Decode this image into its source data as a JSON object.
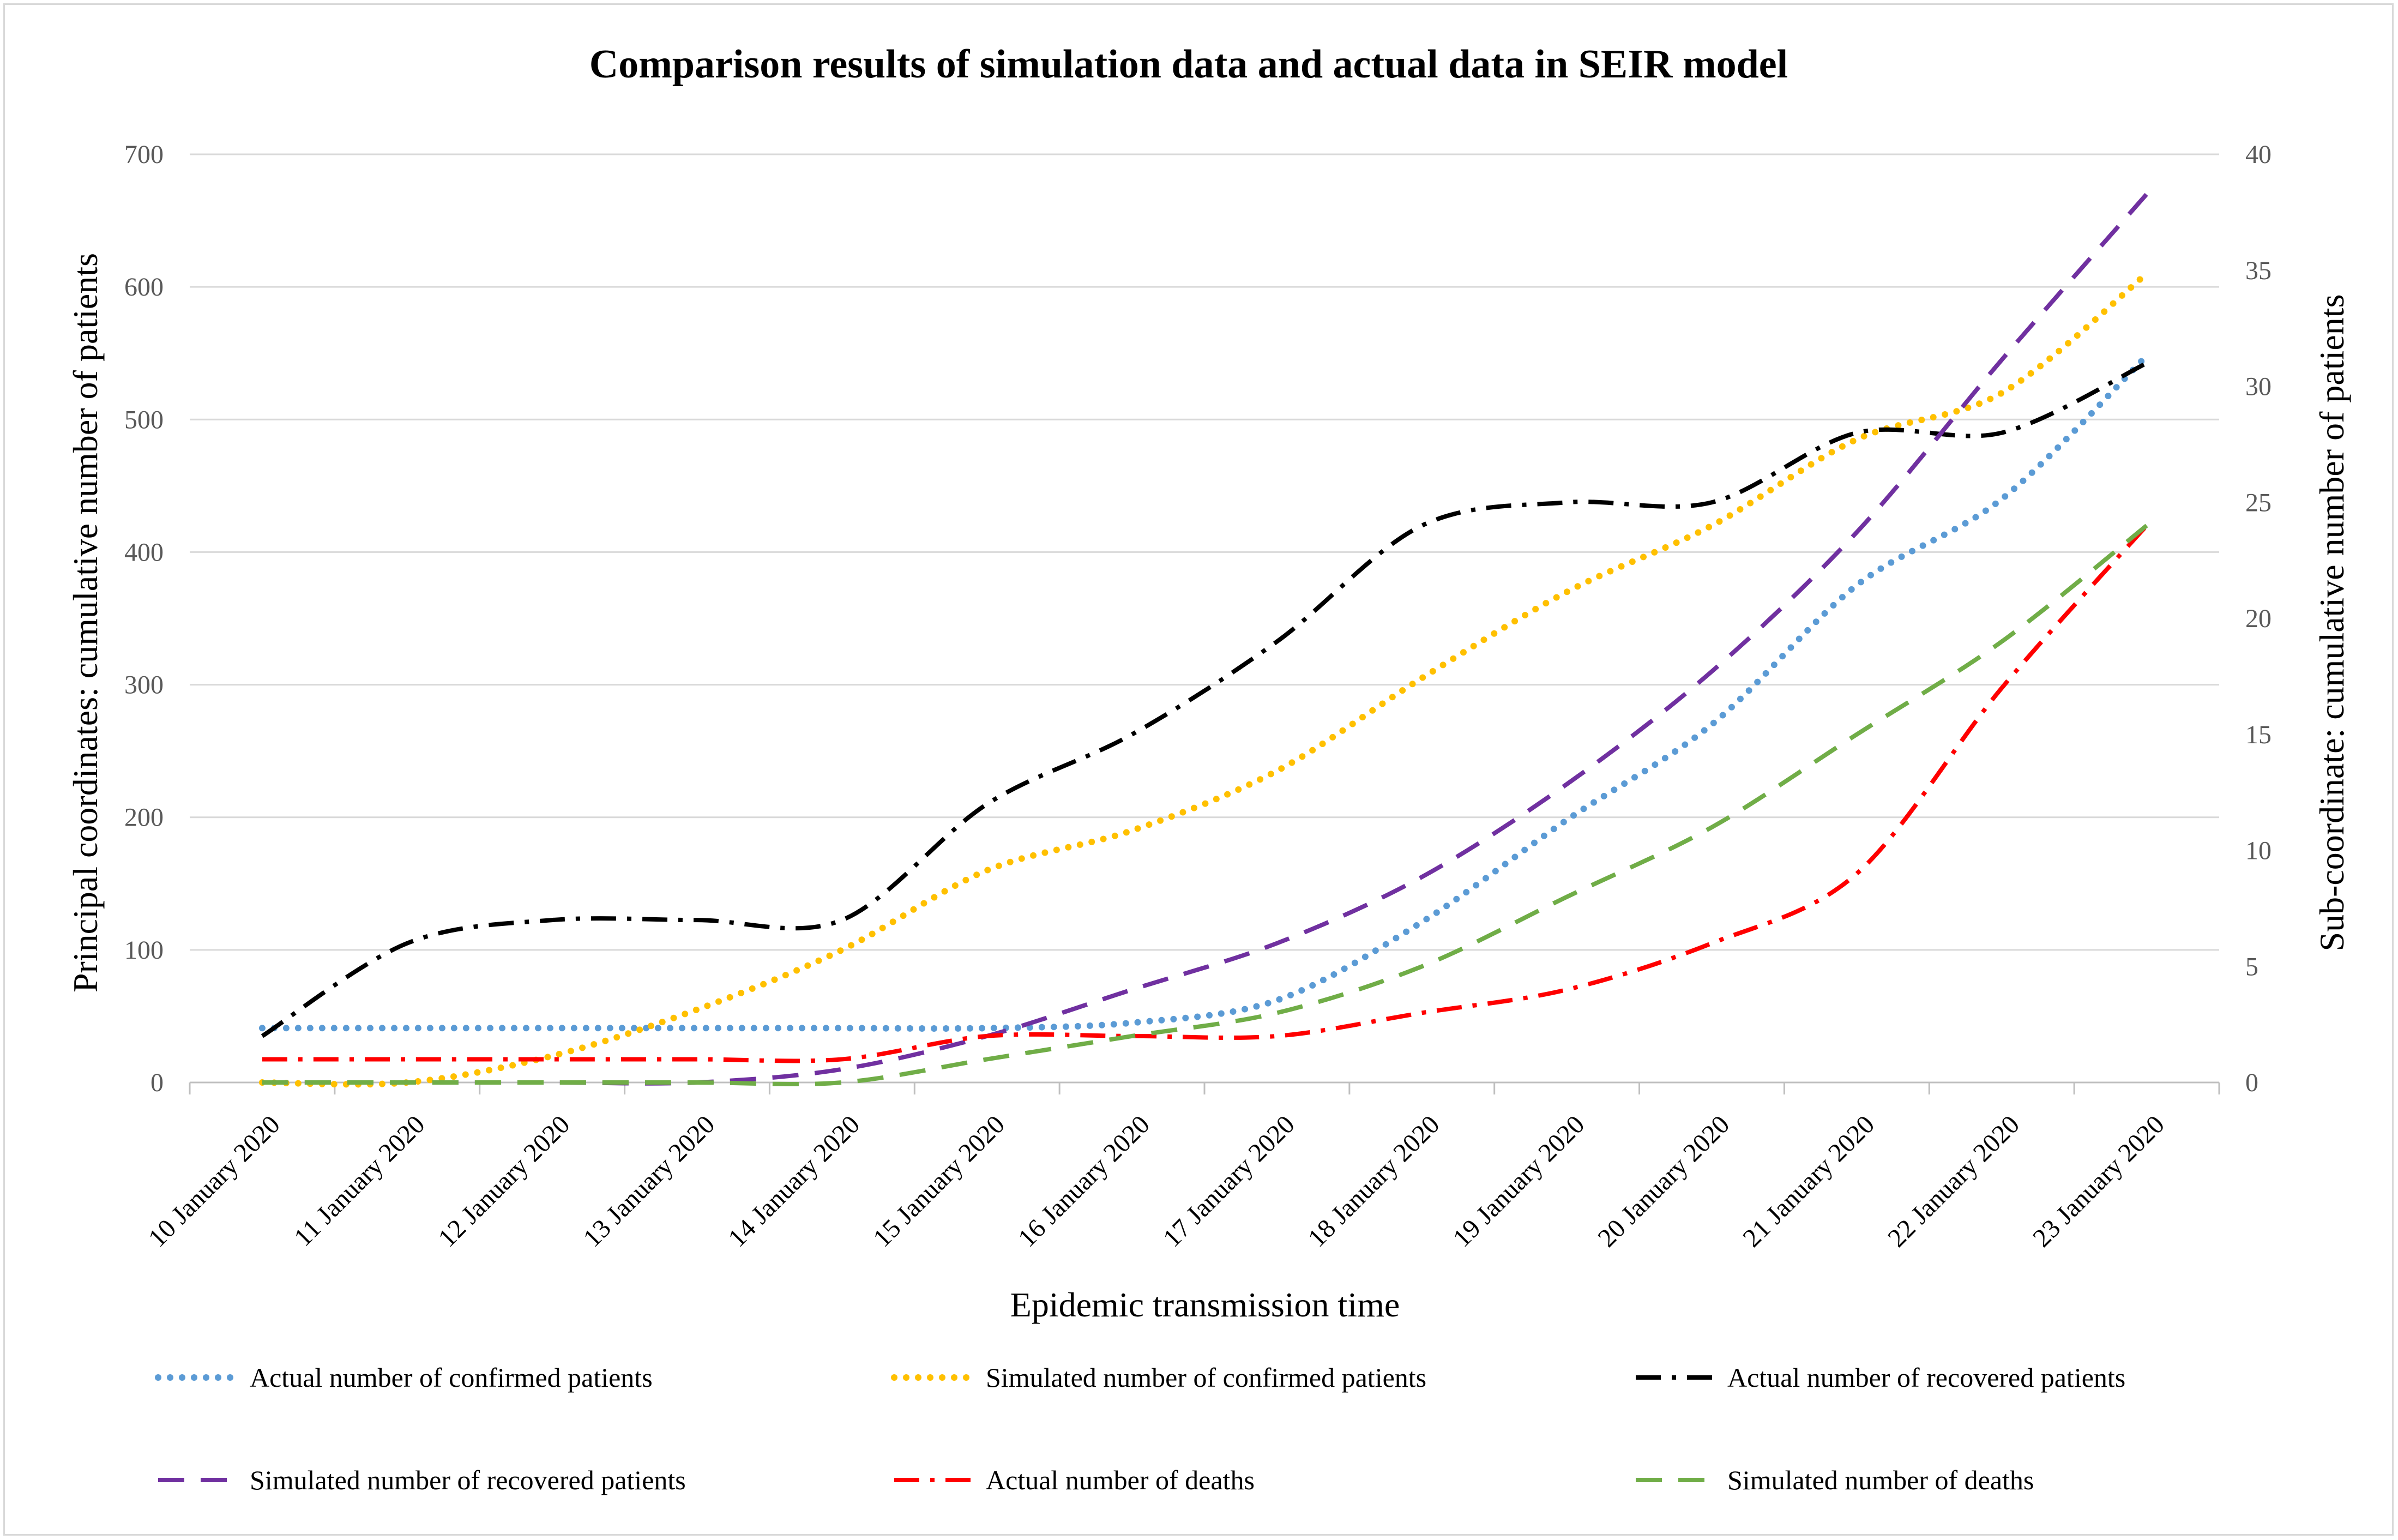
{
  "chart_data": {
    "type": "line",
    "title": "Comparison results of simulation data and actual data in SEIR model",
    "xlabel": "Epidemic transmission time",
    "ylabel": "Principal coordinates: cumulative number of patients",
    "y2label": "Sub-coordinate: cumulative number of patients",
    "ylim": [
      0,
      700
    ],
    "y2lim": [
      0,
      40
    ],
    "yticks": [
      0,
      100,
      200,
      300,
      400,
      500,
      600,
      700
    ],
    "y2ticks": [
      0,
      5,
      10,
      15,
      20,
      25,
      30,
      35,
      40
    ],
    "grid": true,
    "legend_position": "bottom",
    "categories": [
      "10 January 2020",
      "11 January 2020",
      "12 January 2020",
      "13 January 2020",
      "14 January 2020",
      "15 January 2020",
      "16 January 2020",
      "17 January 2020",
      "18 January 2020",
      "19 January 2020",
      "20 January 2020",
      "21 January 2020",
      "22 January 2020",
      "23 January 2020"
    ],
    "series": [
      {
        "name": "Actual number of confirmed patients",
        "axis": "left",
        "color": "#5b9bd5",
        "style": "dotted",
        "values": [
          41,
          41,
          41,
          41,
          41,
          41,
          45,
          62,
          121,
          198,
          270,
          375,
          440,
          548
        ]
      },
      {
        "name": "Simulated number of confirmed patients",
        "axis": "left",
        "color": "#ffc000",
        "style": "dotted",
        "values": [
          0,
          0,
          20,
          55,
          100,
          160,
          190,
          235,
          305,
          370,
          420,
          485,
          520,
          610
        ]
      },
      {
        "name": "Actual number of recovered patients",
        "axis": "right",
        "color": "#000000",
        "style": "dashdot",
        "values": [
          2,
          6,
          7,
          7,
          7,
          12,
          15,
          19,
          24,
          25,
          25,
          28,
          28,
          31
        ]
      },
      {
        "name": "Simulated number of recovered patients",
        "axis": "left",
        "color": "#7030a0",
        "style": "dashed",
        "values": [
          0,
          0,
          0,
          0,
          10,
          35,
          70,
          105,
          155,
          225,
          310,
          415,
          545,
          670
        ]
      },
      {
        "name": "Actual number of deaths",
        "axis": "right",
        "color": "#ff0000",
        "style": "dashdot",
        "values": [
          1,
          1,
          1,
          1,
          1,
          2,
          2,
          2,
          3,
          4,
          6,
          9,
          17,
          24
        ]
      },
      {
        "name": "Simulated number of deaths",
        "axis": "right",
        "color": "#70ad47",
        "style": "dashed",
        "values": [
          0,
          0,
          0,
          0,
          0,
          1,
          2,
          3,
          5,
          8,
          11,
          15,
          19,
          24
        ]
      }
    ]
  }
}
